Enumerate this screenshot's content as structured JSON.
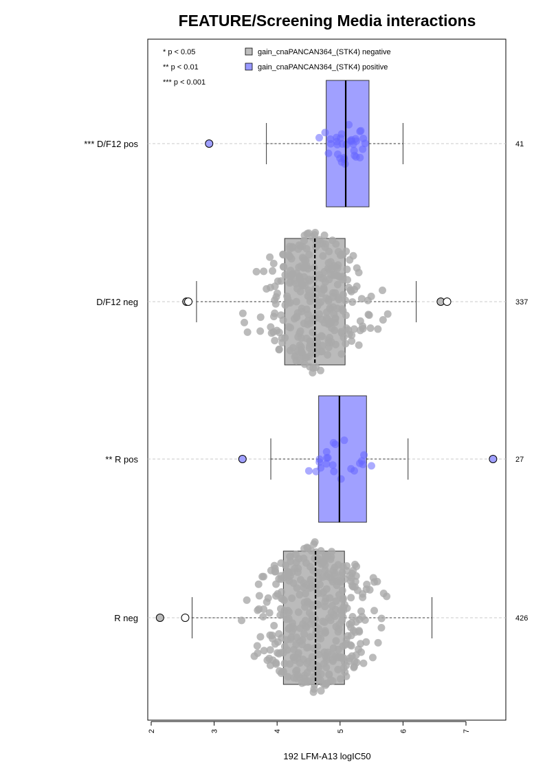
{
  "chart_data": {
    "type": "boxplot-beeswarm",
    "title": "FEATURE/Screening Media interactions",
    "xlabel": "192 LFM-A13 logIC50",
    "xlim": [
      2,
      7.6
    ],
    "x_ticks": [
      "2",
      "3",
      "4",
      "5",
      "6",
      "7"
    ],
    "significance_legend": [
      "* p < 0.05",
      "** p < 0.01",
      "*** p < 0.001"
    ],
    "legend": {
      "position": "top",
      "entries": [
        {
          "label": "gain_cnaPANCAN364_(STK4) negative",
          "color": "#bebebe"
        },
        {
          "label": "gain_cnaPANCAN364_(STK4) positive",
          "color": "#9999ff"
        }
      ]
    },
    "point_colors": {
      "negative": "#aaaaaa",
      "positive": "#6666ff"
    },
    "groups": [
      {
        "label": "*** D/F12 pos",
        "n": "41",
        "status": "positive",
        "whisker_low": 3.83,
        "q1": 4.78,
        "median": 5.09,
        "q3": 5.46,
        "whisker_high": 6.0,
        "outliers": [
          2.92
        ]
      },
      {
        "label": "D/F12 neg",
        "n": "337",
        "status": "negative",
        "whisker_low": 2.72,
        "q1": 4.12,
        "median": 4.6,
        "q3": 5.08,
        "whisker_high": 6.21,
        "outliers": [
          2.56,
          2.59,
          6.6,
          6.7
        ]
      },
      {
        "label": "** R pos",
        "n": "27",
        "status": "positive",
        "whisker_low": 3.9,
        "q1": 4.66,
        "median": 4.99,
        "q3": 5.42,
        "whisker_high": 6.08,
        "outliers": [
          3.45,
          7.43
        ]
      },
      {
        "label": "R neg",
        "n": "426",
        "status": "negative",
        "whisker_low": 2.65,
        "q1": 4.1,
        "median": 4.61,
        "q3": 5.07,
        "whisker_high": 6.46,
        "outliers": [
          2.14,
          2.54
        ]
      }
    ]
  }
}
